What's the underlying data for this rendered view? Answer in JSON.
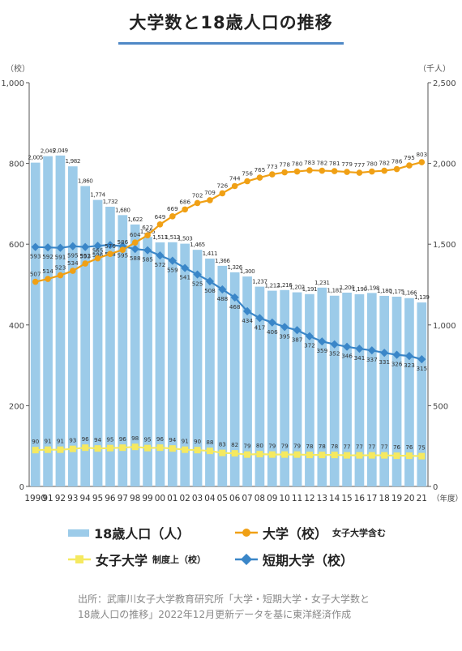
{
  "title": "大学数と18歳人口の推移",
  "chart_data": {
    "type": "bar+line",
    "x": [
      "1990",
      "91",
      "92",
      "93",
      "94",
      "95",
      "96",
      "97",
      "98",
      "99",
      "00",
      "01",
      "02",
      "03",
      "04",
      "05",
      "06",
      "07",
      "08",
      "09",
      "10",
      "11",
      "12",
      "13",
      "14",
      "15",
      "16",
      "17",
      "18",
      "19",
      "20",
      "21"
    ],
    "x_unit": "（年度）",
    "y_left": {
      "unit": "（校）",
      "range": [
        0,
        1000
      ],
      "ticks": [
        "0",
        "200",
        "400",
        "600",
        "800",
        "1,000"
      ]
    },
    "y_right": {
      "unit": "（千人）",
      "range": [
        0,
        2500
      ],
      "ticks": [
        "0",
        "500",
        "1,000",
        "1,500",
        "2,000",
        "2,500"
      ]
    },
    "grid": false,
    "series": [
      {
        "name": "18歳人口（人）",
        "type": "bar",
        "axis": "right",
        "color": "#9ccbe9",
        "values": [
          2005,
          2045,
          2049,
          1982,
          1860,
          1774,
          1732,
          1680,
          1622,
          1545,
          1511,
          1512,
          1503,
          1465,
          1411,
          1366,
          1326,
          1300,
          1237,
          1212,
          1216,
          1202,
          1191,
          1231,
          1181,
          1200,
          1190,
          1198,
          1180,
          1175,
          1166,
          1139
        ],
        "labels": [
          "2,005",
          "2,045",
          "2,049",
          "1,982",
          "1,860",
          "1,774",
          "1,732",
          "1,680",
          "1,622",
          "1,545",
          "1,511",
          "1,512",
          "1,503",
          "1,465",
          "1,411",
          "1,366",
          "1,326",
          "1,300",
          "1,237",
          "1,212",
          "1,216",
          "1,202",
          "1,191",
          "1,231",
          "1,181",
          "1,200",
          "1,190",
          "1,198",
          "1,180",
          "1,175",
          "1,166",
          "1,139"
        ]
      },
      {
        "name": "大学（校）",
        "type": "line",
        "axis": "left",
        "color": "#f0a015",
        "values": [
          507,
          514,
          523,
          534,
          552,
          565,
          576,
          586,
          604,
          622,
          649,
          669,
          686,
          702,
          709,
          726,
          744,
          756,
          765,
          773,
          778,
          780,
          783,
          782,
          781,
          779,
          777,
          780,
          782,
          786,
          795,
          803
        ]
      },
      {
        "name": "女子大学",
        "type": "line",
        "axis": "left",
        "color": "#f5e960",
        "values": [
          90,
          91,
          91,
          93,
          96,
          94,
          95,
          96,
          98,
          95,
          96,
          94,
          91,
          90,
          88,
          83,
          82,
          79,
          80,
          79,
          79,
          79,
          78,
          78,
          78,
          77,
          77,
          77,
          77,
          76,
          76,
          75
        ]
      },
      {
        "name": "短期大学（校）",
        "type": "line",
        "axis": "left",
        "color": "#3a86c8",
        "values": [
          593,
          592,
          591,
          595,
          593,
          596,
          598,
          595,
          588,
          585,
          572,
          559,
          541,
          525,
          508,
          488,
          468,
          434,
          417,
          406,
          395,
          387,
          372,
          359,
          352,
          346,
          341,
          337,
          331,
          326,
          323,
          315
        ]
      }
    ]
  },
  "legend": {
    "population": "18歳人口（人）",
    "universities": "大学（校）",
    "universities_note": "女子大学含む",
    "womens": "女子大学",
    "womens_note": "制度上（校）",
    "junior": "短期大学（校）"
  },
  "source": {
    "line1": "出所：武庫川女子大学教育研究所「大学・短期大学・女子大学数と",
    "line2": "18歳人口の推移」2022年12月更新データを基に東洋経済作成"
  }
}
